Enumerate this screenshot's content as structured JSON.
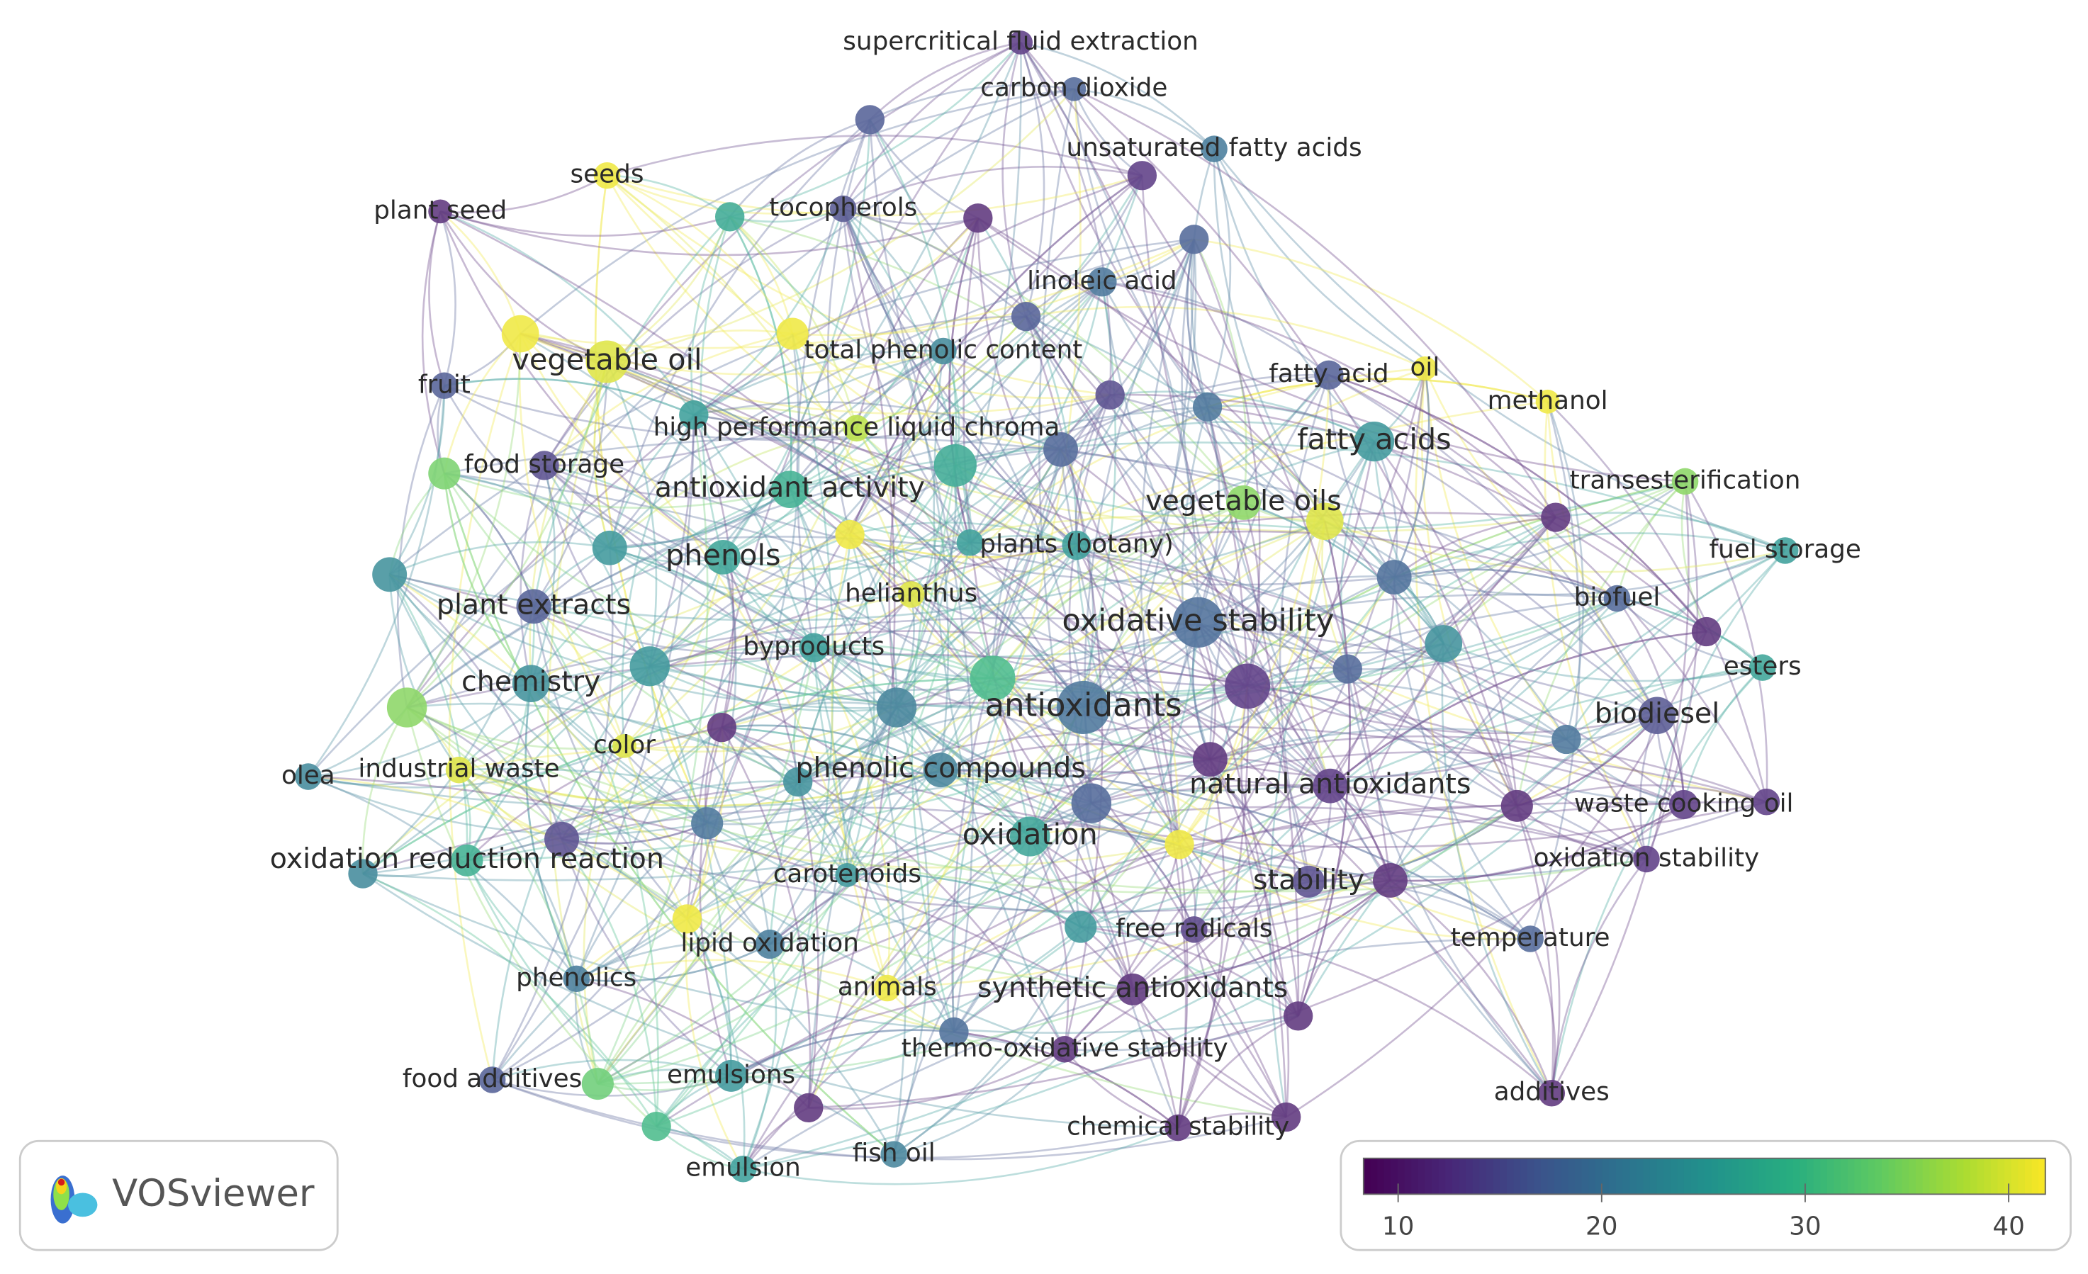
{
  "nodes": [
    {
      "label": "supercritical fluid extraction",
      "value": 12
    },
    {
      "label": "carbon dioxide",
      "value": 17
    },
    {
      "label": "unsaturated fatty acids",
      "value": 20
    },
    {
      "label": "seeds",
      "value": 41
    },
    {
      "label": "plant seed",
      "value": 11
    },
    {
      "label": "tocopherols",
      "value": 15
    },
    {
      "label": "linoleic acid",
      "value": 19
    },
    {
      "label": "vegetable oil",
      "value": 40
    },
    {
      "label": "fruit",
      "value": 16
    },
    {
      "label": "total phenolic content",
      "value": 22
    },
    {
      "label": "fatty acid",
      "value": 16
    },
    {
      "label": "oil",
      "value": 41
    },
    {
      "label": "methanol",
      "value": 41
    },
    {
      "label": "high performance liquid chroma",
      "value": 38
    },
    {
      "label": "fatty acids",
      "value": 24
    },
    {
      "label": "food storage",
      "value": 14
    },
    {
      "label": "antioxidant activity",
      "value": 28
    },
    {
      "label": "transesterification",
      "value": 35
    },
    {
      "label": "vegetable oils",
      "value": 35
    },
    {
      "label": "fuel storage",
      "value": 25
    },
    {
      "label": "phenols",
      "value": 26
    },
    {
      "label": "plants (botany)",
      "value": 25
    },
    {
      "label": "helianthus",
      "value": 40
    },
    {
      "label": "plant extracts",
      "value": 16
    },
    {
      "label": "biofuel",
      "value": 17
    },
    {
      "label": "oxidative stability",
      "value": 18
    },
    {
      "label": "byproducts",
      "value": 25
    },
    {
      "label": "esters",
      "value": 26
    },
    {
      "label": "chemistry",
      "value": 23
    },
    {
      "label": "antioxidants",
      "value": 19
    },
    {
      "label": "biodiesel",
      "value": 15
    },
    {
      "label": "color",
      "value": 40
    },
    {
      "label": "olea",
      "value": 22
    },
    {
      "label": "industrial waste",
      "value": 40
    },
    {
      "label": "phenolic compounds",
      "value": 21
    },
    {
      "label": "natural antioxidants",
      "value": 12
    },
    {
      "label": "waste cooking oil",
      "value": 12
    },
    {
      "label": "oxidation",
      "value": 26
    },
    {
      "label": "oxidation reduction reaction",
      "value": 28
    },
    {
      "label": "carotenoids",
      "value": 24
    },
    {
      "label": "oxidation stability",
      "value": 12
    },
    {
      "label": "stability",
      "value": 14
    },
    {
      "label": "free radicals",
      "value": 13
    },
    {
      "label": "temperature",
      "value": 17
    },
    {
      "label": "lipid oxidation",
      "value": 20
    },
    {
      "label": "phenolics",
      "value": 20
    },
    {
      "label": "animals",
      "value": 41
    },
    {
      "label": "synthetic antioxidants",
      "value": 11
    },
    {
      "label": "thermo-oxidative stability",
      "value": 11
    },
    {
      "label": "food additives",
      "value": 16
    },
    {
      "label": "emulsions",
      "value": 24
    },
    {
      "label": "additives",
      "value": 11
    },
    {
      "label": "chemical stability",
      "value": 11
    },
    {
      "label": "fish oil",
      "value": 21
    },
    {
      "label": "emulsion",
      "value": 25
    },
    {
      "value": 16
    },
    {
      "value": 27
    },
    {
      "value": 11
    },
    {
      "value": 12
    },
    {
      "value": 17
    },
    {
      "value": 16
    },
    {
      "value": 41
    },
    {
      "value": 41
    },
    {
      "value": 25
    },
    {
      "value": 14
    },
    {
      "value": 19
    },
    {
      "value": 17
    },
    {
      "value": 27
    },
    {
      "value": 34
    },
    {
      "value": 41
    },
    {
      "value": 25
    },
    {
      "value": 40
    },
    {
      "value": 11
    },
    {
      "value": 24
    },
    {
      "value": 23
    },
    {
      "value": 18
    },
    {
      "value": 11
    },
    {
      "value": 23
    },
    {
      "value": 24
    },
    {
      "value": 30
    },
    {
      "value": 12
    },
    {
      "value": 17
    },
    {
      "value": 35
    },
    {
      "value": 21
    },
    {
      "value": 11
    },
    {
      "value": 19
    },
    {
      "value": 11
    },
    {
      "value": 23
    },
    {
      "value": 17
    },
    {
      "value": 11
    },
    {
      "value": 14
    },
    {
      "value": 19
    },
    {
      "value": 41
    },
    {
      "value": 22
    },
    {
      "value": 11
    },
    {
      "value": 41
    },
    {
      "value": 24
    },
    {
      "value": 11
    },
    {
      "value": 18
    },
    {
      "value": 33
    },
    {
      "value": 11
    },
    {
      "value": 30
    },
    {
      "value": 11
    },
    {
      "value": 12
    }
  ],
  "colorbar": {
    "lim": [
      8.3,
      41.8
    ],
    "ticks": [
      10,
      20,
      30,
      40
    ]
  },
  "logo": "VOSviewer"
}
